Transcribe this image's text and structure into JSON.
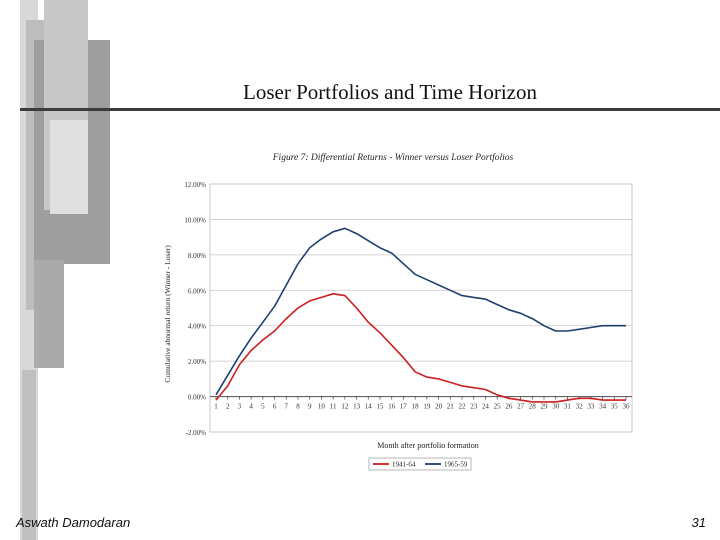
{
  "slide": {
    "title": "Loser Portfolios and Time Horizon",
    "footer_author": "Aswath Damodaran",
    "page_number": "31"
  },
  "chart_data": {
    "type": "line",
    "title": "Figure 7: Differential Returns - Winner versus Loser Portfolios",
    "xlabel": "Month after portfolio formation",
    "ylabel": "Cumulative abnormal return (Winner - Loser)",
    "x": [
      1,
      2,
      3,
      4,
      5,
      6,
      7,
      8,
      9,
      10,
      11,
      12,
      13,
      14,
      15,
      16,
      17,
      18,
      19,
      20,
      21,
      22,
      23,
      24,
      25,
      26,
      27,
      28,
      29,
      30,
      31,
      32,
      33,
      34,
      35,
      36
    ],
    "x_tick_labels": [
      "1",
      "2",
      "3",
      "4",
      "5",
      "6",
      "7",
      "8",
      "9",
      "10",
      "11",
      "12",
      "13",
      "14",
      "15",
      "16",
      "17",
      "18",
      "19",
      "20",
      "21",
      "22",
      "23",
      "24",
      "25",
      "26",
      "27",
      "28",
      "29",
      "30",
      "31",
      "32",
      "33",
      "34",
      "35",
      "36"
    ],
    "y_tick_labels": [
      "12.00%",
      "10.00%",
      "8.00%",
      "6.00%",
      "4.00%",
      "2.00%",
      "0.00%",
      "-2.00%"
    ],
    "y_ticks": [
      12,
      10,
      8,
      6,
      4,
      2,
      0,
      -2
    ],
    "ylim": [
      -2,
      12
    ],
    "grid": true,
    "legend_position": "bottom",
    "series": [
      {
        "name": "1941-64",
        "color": "#cc1f1f",
        "values": [
          -0.2,
          0.6,
          1.8,
          2.6,
          3.2,
          3.7,
          4.4,
          5.0,
          5.4,
          5.6,
          5.8,
          5.7,
          5.0,
          4.2,
          3.6,
          2.9,
          2.2,
          1.4,
          1.1,
          1.0,
          0.8,
          0.6,
          0.5,
          0.4,
          0.1,
          -0.1,
          -0.2,
          -0.3,
          -0.3,
          -0.3,
          -0.2,
          -0.1,
          -0.1,
          -0.2,
          -0.2,
          -0.2
        ]
      },
      {
        "name": "1965-59",
        "color": "#1f3f6e",
        "values": [
          0.1,
          1.2,
          2.3,
          3.3,
          4.2,
          5.1,
          6.3,
          7.5,
          8.4,
          8.9,
          9.3,
          9.5,
          9.2,
          8.8,
          8.4,
          8.1,
          7.5,
          6.9,
          6.6,
          6.3,
          6.0,
          5.7,
          5.6,
          5.5,
          5.2,
          4.9,
          4.7,
          4.4,
          4.0,
          3.7,
          3.7,
          3.8,
          3.9,
          4.0,
          4.0,
          4.0
        ]
      }
    ]
  }
}
